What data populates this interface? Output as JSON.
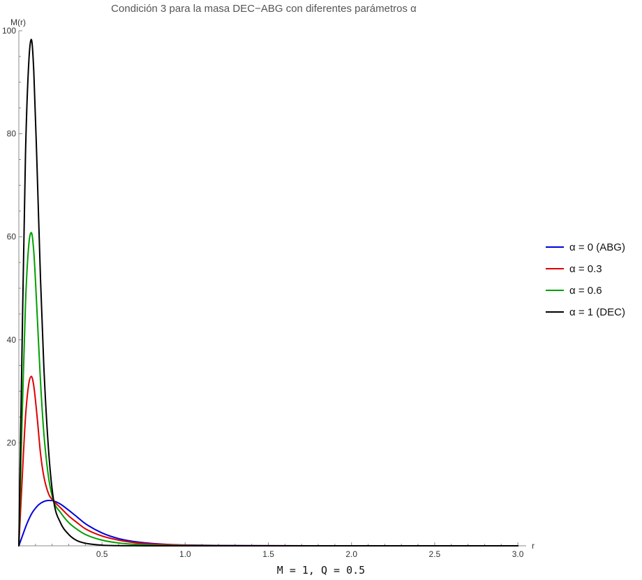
{
  "chart_data": {
    "type": "line",
    "title": "Condición 3 para la masa DEC−ABG con diferentes parámetros α",
    "xlabel": "r",
    "ylabel": "M(r)",
    "footer": "M = 1, Q = 0.5",
    "xlim": [
      0,
      3.05
    ],
    "ylim": [
      0,
      100
    ],
    "x_ticks": [
      0.5,
      1.0,
      1.5,
      2.0,
      2.5,
      3.0
    ],
    "x_tick_labels": [
      "0.5",
      "1.0",
      "1.5",
      "2.0",
      "2.5",
      "3.0"
    ],
    "y_ticks": [
      20,
      40,
      60,
      80,
      100
    ],
    "y_tick_labels": [
      "20",
      "40",
      "60",
      "80",
      "100"
    ],
    "grid": false,
    "legend_position": "right",
    "series": [
      {
        "name": "α = 0 (ABG)",
        "color": "#0000dd",
        "x": [
          0,
          0.02,
          0.05,
          0.08,
          0.1,
          0.12,
          0.15,
          0.18,
          0.21,
          0.25,
          0.3,
          0.35,
          0.4,
          0.5,
          0.6,
          0.7,
          0.8,
          0.9,
          1.0,
          1.2,
          1.5,
          2.0,
          2.5,
          3.0
        ],
        "y": [
          0,
          1.8,
          4.4,
          6.4,
          7.3,
          8.0,
          8.6,
          8.8,
          8.7,
          8.1,
          6.9,
          5.6,
          4.3,
          2.5,
          1.4,
          0.8,
          0.45,
          0.25,
          0.15,
          0.06,
          0.02,
          0.0,
          0.0,
          0.0
        ]
      },
      {
        "name": "α = 0.3",
        "color": "#dd0000",
        "x": [
          0,
          0.02,
          0.04,
          0.06,
          0.075,
          0.09,
          0.11,
          0.13,
          0.15,
          0.18,
          0.21,
          0.25,
          0.3,
          0.35,
          0.4,
          0.5,
          0.6,
          0.7,
          0.8,
          1.0,
          1.2,
          1.5,
          2.0,
          3.0
        ],
        "y": [
          0,
          13,
          25,
          31.5,
          32.9,
          31,
          25,
          18,
          13.5,
          10,
          8.7,
          7.4,
          5.8,
          4.5,
          3.3,
          1.9,
          1.1,
          0.6,
          0.35,
          0.12,
          0.04,
          0.01,
          0.0,
          0.0
        ]
      },
      {
        "name": "α = 0.6",
        "color": "#00a000",
        "x": [
          0,
          0.02,
          0.04,
          0.06,
          0.075,
          0.09,
          0.11,
          0.13,
          0.15,
          0.18,
          0.21,
          0.25,
          0.3,
          0.35,
          0.4,
          0.5,
          0.6,
          0.7,
          0.8,
          1.0,
          1.2,
          1.5,
          2.0,
          3.0
        ],
        "y": [
          0,
          25,
          47,
          58.5,
          60.8,
          57,
          45,
          32,
          22,
          13,
          8.6,
          6.5,
          4.5,
          3.2,
          2.2,
          1.1,
          0.55,
          0.28,
          0.14,
          0.04,
          0.01,
          0.0,
          0.0,
          0.0
        ]
      },
      {
        "name": "α = 1 (DEC)",
        "color": "#000000",
        "x": [
          0,
          0.02,
          0.04,
          0.06,
          0.075,
          0.09,
          0.11,
          0.13,
          0.15,
          0.18,
          0.21,
          0.25,
          0.3,
          0.35,
          0.4,
          0.5,
          0.6,
          0.7,
          0.8,
          1.0,
          1.2,
          1.5,
          2.0,
          3.0
        ],
        "y": [
          0,
          40,
          76,
          94,
          98.3,
          92,
          73,
          52,
          35,
          18,
          8.6,
          4.5,
          2.2,
          1.0,
          0.5,
          0.12,
          0.03,
          0.01,
          0.0,
          0.0,
          0.0,
          0.0,
          0.0,
          0.0
        ]
      }
    ]
  }
}
